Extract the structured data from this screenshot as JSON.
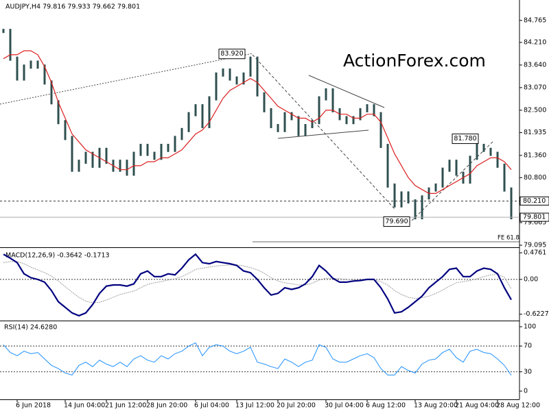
{
  "chart_data": [
    {
      "type": "candlestick",
      "title": "AUDJPY,H4 79.816 79.933 79.662 79.801",
      "watermark": "ActionForex.com",
      "fe_label": "FE 61.8",
      "categories": [
        null,
        null,
        "6 Jun 2018",
        null,
        null,
        null,
        null,
        null,
        null,
        "14 Jun 04:00",
        null,
        null,
        null,
        null,
        null,
        "21 Jun 12:00",
        null,
        null,
        null,
        null,
        null,
        "28 Jun 20:00",
        null,
        null,
        null,
        null,
        null,
        null,
        "6 Jul 04:00",
        null,
        null,
        null,
        null,
        null,
        "13 Jul 12:00",
        null,
        null,
        null,
        null,
        null,
        "20 Jul 20:00",
        null,
        null,
        null,
        null,
        null,
        null,
        "30 Jul 04:00",
        null,
        null,
        null,
        null,
        null,
        "6 Aug 12:00",
        null,
        null,
        null,
        null,
        null,
        null,
        "13 Aug 20:00",
        null,
        null,
        null,
        null,
        null,
        "21 Aug 04:00",
        null,
        null,
        null,
        null,
        null,
        "28 Aug 12:00",
        null,
        null
      ],
      "series": [
        {
          "color": "#2f4f4f",
          "values": [
            84.5,
            83.8,
            83.3,
            83.6,
            83.7,
            83.6,
            83.2,
            82.7,
            82.2,
            81.8,
            81.0,
            81.2,
            81.4,
            81.1,
            81.5,
            81.2,
            81.0,
            81.2,
            80.9,
            81.4,
            81.6,
            81.4,
            81.3,
            81.6,
            81.5,
            81.8,
            82.0,
            82.4,
            82.6,
            82.1,
            82.8,
            83.4,
            83.5,
            83.3,
            83.2,
            83.4,
            83.8,
            82.9,
            82.5,
            82.1,
            82.0,
            82.4,
            82.3,
            81.9,
            82.1,
            82.2,
            82.8,
            83.0,
            82.5,
            82.3,
            82.2,
            82.3,
            82.5,
            82.6,
            82.4,
            81.6,
            80.6,
            80.1,
            80.4,
            80.2,
            79.8,
            80.3,
            80.5,
            80.6,
            81.0,
            81.2,
            80.9,
            80.7,
            81.3,
            81.6,
            81.5,
            81.4,
            81.1,
            80.5,
            79.801
          ]
        },
        {
          "color": "#dc1e1e",
          "values": [
            83.8,
            83.9,
            83.9,
            84.0,
            84.0,
            83.9,
            83.6,
            83.2,
            82.7,
            82.3,
            81.9,
            81.7,
            81.5,
            81.4,
            81.3,
            81.2,
            81.1,
            81.0,
            81.0,
            81.1,
            81.1,
            81.2,
            81.2,
            81.3,
            81.3,
            81.4,
            81.5,
            81.7,
            81.9,
            82.0,
            82.2,
            82.5,
            82.8,
            83.0,
            83.1,
            83.2,
            83.3,
            83.2,
            83.0,
            82.8,
            82.6,
            82.5,
            82.4,
            82.3,
            82.3,
            82.2,
            82.3,
            82.5,
            82.5,
            82.4,
            82.4,
            82.3,
            82.3,
            82.4,
            82.4,
            82.2,
            81.8,
            81.4,
            81.1,
            80.8,
            80.6,
            80.5,
            80.4,
            80.4,
            80.5,
            80.6,
            80.7,
            80.8,
            80.9,
            81.1,
            81.2,
            81.3,
            81.3,
            81.2,
            81.0
          ]
        }
      ],
      "annotations": [
        {
          "index": 36,
          "value": 83.92,
          "label": "83.920"
        },
        {
          "index": 60,
          "value": 79.69,
          "label": "79.690"
        },
        {
          "index": 70,
          "value": 81.78,
          "label": "81.780"
        }
      ],
      "levels": [
        {
          "value": 80.21,
          "label": "80.210"
        }
      ],
      "ylim": [
        79.06,
        85.28
      ],
      "yticks": [
        84.765,
        {
          "value": 84.21,
          "label": "84.210"
        },
        {
          "value": 83.64,
          "label": "83.640"
        },
        {
          "value": 83.07,
          "label": "83.070"
        },
        {
          "value": 82.5,
          "label": "82.500"
        },
        81.935,
        {
          "value": 81.36,
          "label": "81.360"
        },
        {
          "value": 80.8,
          "label": "80.800"
        },
        79.665,
        79.095
      ]
    },
    {
      "type": "line",
      "title": "MACD(12,26,9) -0.3642 -0.1713",
      "series": [
        {
          "color": "#000080",
          "values": [
            0.45,
            0.38,
            0.3,
            0.1,
            0.03,
            0.0,
            -0.05,
            -0.2,
            -0.4,
            -0.5,
            -0.6,
            -0.65,
            -0.6,
            -0.45,
            -0.25,
            -0.12,
            -0.1,
            -0.1,
            -0.12,
            -0.08,
            0.1,
            0.15,
            0.05,
            0.05,
            0.1,
            0.08,
            0.2,
            0.35,
            0.45,
            0.3,
            0.28,
            0.32,
            0.3,
            0.28,
            0.25,
            0.15,
            0.12,
            0.0,
            -0.15,
            -0.28,
            -0.25,
            -0.15,
            -0.18,
            -0.15,
            -0.08,
            0.05,
            0.25,
            0.15,
            0.02,
            -0.05,
            -0.05,
            -0.03,
            -0.02,
            0.0,
            0.0,
            -0.15,
            -0.35,
            -0.6,
            -0.58,
            -0.5,
            -0.4,
            -0.3,
            -0.15,
            -0.05,
            0.05,
            0.18,
            0.2,
            0.05,
            0.05,
            0.15,
            0.2,
            0.18,
            0.1,
            -0.15,
            -0.3642
          ]
        },
        {
          "color": "#a0a0a0",
          "values": [
            0.3,
            0.32,
            0.32,
            0.28,
            0.22,
            0.17,
            0.12,
            0.06,
            -0.03,
            -0.13,
            -0.23,
            -0.32,
            -0.39,
            -0.42,
            -0.41,
            -0.37,
            -0.32,
            -0.27,
            -0.24,
            -0.21,
            -0.15,
            -0.09,
            -0.06,
            -0.04,
            -0.01,
            0.01,
            0.05,
            0.11,
            0.18,
            0.2,
            0.22,
            0.24,
            0.25,
            0.26,
            0.26,
            0.24,
            0.21,
            0.17,
            0.11,
            0.03,
            -0.03,
            -0.06,
            -0.08,
            -0.1,
            -0.1,
            -0.07,
            -0.01,
            0.02,
            0.02,
            0.01,
            0.0,
            -0.01,
            -0.01,
            -0.01,
            -0.01,
            -0.04,
            -0.1,
            -0.2,
            -0.27,
            -0.32,
            -0.34,
            -0.33,
            -0.3,
            -0.25,
            -0.19,
            -0.12,
            -0.06,
            -0.04,
            -0.02,
            0.01,
            0.05,
            0.08,
            0.09,
            0.04,
            -0.1713
          ]
        }
      ],
      "levels": [
        0
      ],
      "ylim": [
        -0.725,
        0.55
      ],
      "yticks": [
        0.4761,
        {
          "value": 0,
          "label": "0.00"
        },
        -0.6227
      ]
    },
    {
      "type": "line",
      "title": "RSI(14) 24.6280",
      "series": [
        {
          "color": "#1e90ff",
          "values": [
            72,
            60,
            55,
            62,
            58,
            60,
            50,
            40,
            35,
            28,
            25,
            40,
            45,
            38,
            48,
            42,
            38,
            45,
            38,
            50,
            55,
            48,
            45,
            55,
            50,
            58,
            62,
            70,
            75,
            55,
            68,
            72,
            70,
            62,
            58,
            62,
            68,
            45,
            42,
            38,
            35,
            50,
            45,
            38,
            45,
            48,
            72,
            68,
            50,
            45,
            45,
            50,
            55,
            58,
            52,
            35,
            25,
            25,
            38,
            32,
            28,
            42,
            48,
            50,
            60,
            65,
            52,
            45,
            62,
            65,
            60,
            58,
            50,
            40,
            24.628
          ]
        }
      ],
      "levels": [
        70,
        30
      ],
      "ylim": [
        -12.8,
        107.4
      ],
      "yticks": [
        100,
        70,
        30,
        0
      ]
    }
  ]
}
